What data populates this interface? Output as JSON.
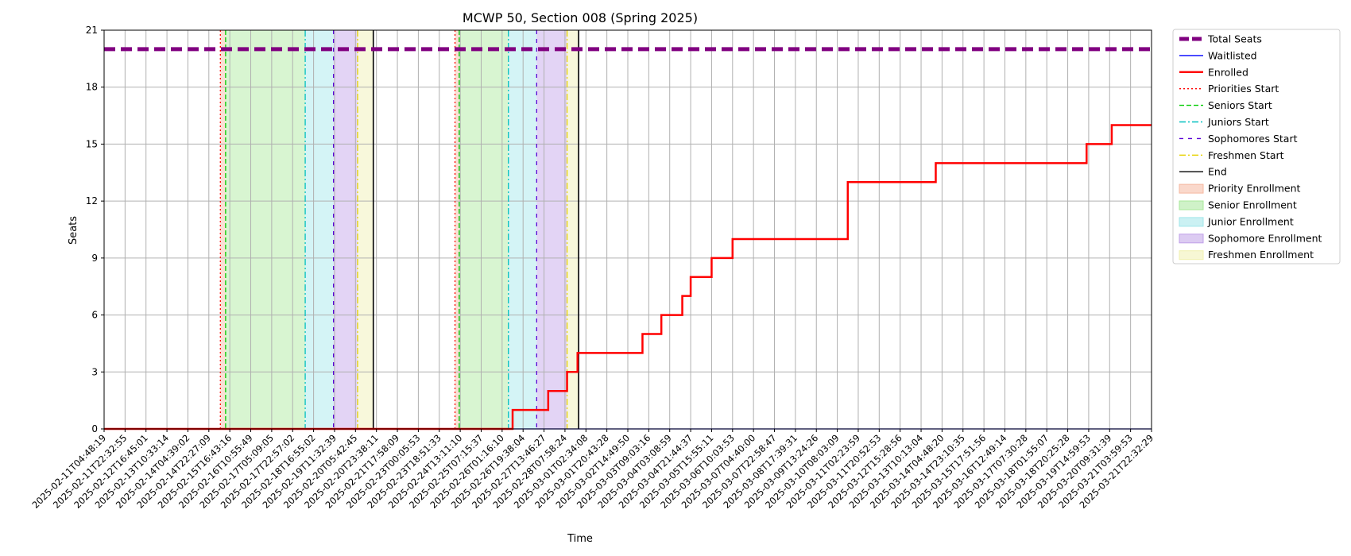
{
  "chart_data": {
    "type": "line",
    "title": "MCWP 50, Section 008 (Spring 2025)",
    "xlabel": "Time",
    "ylabel": "Seats",
    "ylim": [
      0,
      21
    ],
    "yticks": [
      0,
      3,
      6,
      9,
      12,
      15,
      18,
      21
    ],
    "grid": true,
    "legend_position": "outside-right",
    "x_ticks": [
      "2025-02-11T04:48:19",
      "2025-02-11T22:32:55",
      "2025-02-12T16:45:01",
      "2025-02-13T10:33:14",
      "2025-02-14T04:39:02",
      "2025-02-14T22:27:09",
      "2025-02-15T16:43:16",
      "2025-02-16T10:55:49",
      "2025-02-17T05:09:05",
      "2025-02-17T22:57:02",
      "2025-02-18T16:55:02",
      "2025-02-19T11:32:39",
      "2025-02-20T05:42:45",
      "2025-02-20T23:38:11",
      "2025-02-21T17:58:09",
      "2025-02-23T00:05:53",
      "2025-02-23T18:51:33",
      "2025-02-24T13:11:10",
      "2025-02-25T07:15:37",
      "2025-02-26T01:16:10",
      "2025-02-26T19:38:04",
      "2025-02-27T13:46:27",
      "2025-02-28T07:58:24",
      "2025-03-01T02:34:08",
      "2025-03-01T20:43:28",
      "2025-03-02T14:49:50",
      "2025-03-03T09:03:16",
      "2025-03-04T03:08:59",
      "2025-03-04T21:44:37",
      "2025-03-05T15:55:11",
      "2025-03-06T10:03:53",
      "2025-03-07T04:40:00",
      "2025-03-07T22:58:47",
      "2025-03-08T17:39:31",
      "2025-03-09T13:24:26",
      "2025-03-10T08:03:09",
      "2025-03-11T02:23:59",
      "2025-03-11T20:52:53",
      "2025-03-12T15:28:56",
      "2025-03-13T10:13:04",
      "2025-03-14T04:48:20",
      "2025-03-14T23:10:35",
      "2025-03-15T17:51:56",
      "2025-03-16T12:49:14",
      "2025-03-17T07:30:28",
      "2025-03-18T01:55:07",
      "2025-03-18T20:25:28",
      "2025-03-19T14:59:53",
      "2025-03-20T09:31:39",
      "2025-03-21T03:59:53",
      "2025-03-21T22:32:29"
    ],
    "series": [
      {
        "name": "Total Seats",
        "color": "#800080",
        "style": "dashed",
        "x_index": [
          0,
          50
        ],
        "values": [
          20,
          20
        ]
      },
      {
        "name": "Waitlisted",
        "color": "#0000ff",
        "style": "solid",
        "x_index": [
          0,
          50
        ],
        "values": [
          0,
          0
        ]
      },
      {
        "name": "Enrolled",
        "color": "#ff0000",
        "style": "step",
        "x_index": [
          0,
          19.5,
          21.2,
          22.1,
          22.6,
          25.7,
          26.6,
          27.6,
          28.0,
          29.0,
          30.0,
          35.5,
          39.7,
          46.9,
          48.1,
          50
        ],
        "values": [
          0,
          1,
          2,
          3,
          4,
          5,
          6,
          7,
          8,
          9,
          10,
          13,
          14,
          15,
          16,
          16
        ]
      }
    ],
    "legend": [
      {
        "label": "Total Seats",
        "kind": "line",
        "color": "#800080",
        "style": "thick-dash"
      },
      {
        "label": "Waitlisted",
        "kind": "line",
        "color": "#0000ff",
        "style": "solid"
      },
      {
        "label": "Enrolled",
        "kind": "line",
        "color": "#ff0000",
        "style": "thick"
      },
      {
        "label": "Priorities Start",
        "kind": "line",
        "color": "#ff0000",
        "style": "dotted"
      },
      {
        "label": "Seniors Start",
        "kind": "line",
        "color": "#00cc00",
        "style": "dashed"
      },
      {
        "label": "Juniors Start",
        "kind": "line",
        "color": "#00bfbf",
        "style": "dashdot"
      },
      {
        "label": "Sophomores Start",
        "kind": "line",
        "color": "#5a00d6",
        "style": "loosedash"
      },
      {
        "label": "Freshmen Start",
        "kind": "line",
        "color": "#e6d200",
        "style": "dashdot"
      },
      {
        "label": "End",
        "kind": "line",
        "color": "#000000",
        "style": "solid"
      },
      {
        "label": "Priority Enrollment",
        "kind": "patch",
        "color": "#f5b8a0"
      },
      {
        "label": "Senior Enrollment",
        "kind": "patch",
        "color": "#a8e89a"
      },
      {
        "label": "Junior Enrollment",
        "kind": "patch",
        "color": "#a0e6ea"
      },
      {
        "label": "Sophomore Enrollment",
        "kind": "patch",
        "color": "#c0a0e8"
      },
      {
        "label": "Freshmen Enrollment",
        "kind": "patch",
        "color": "#f0f0b0"
      }
    ],
    "enrollment_periods": [
      {
        "priorities_start": 5.55,
        "seniors_start": 5.8,
        "juniors_start": 9.6,
        "sophomores_start": 10.95,
        "freshmen_start": 12.1,
        "end": 12.85
      },
      {
        "priorities_start": 16.75,
        "seniors_start": 16.95,
        "juniors_start": 19.3,
        "sophomores_start": 20.65,
        "freshmen_start": 22.1,
        "end": 22.65
      }
    ],
    "region_colors": {
      "priority": "#f5b8a0",
      "senior": "#a8e89a",
      "junior": "#a0e6ea",
      "sophomore": "#c0a0e8",
      "freshmen": "#f0f0b0"
    }
  }
}
